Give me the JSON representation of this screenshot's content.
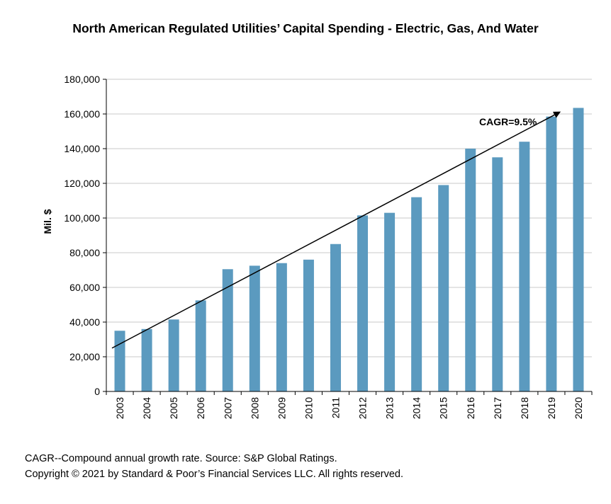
{
  "chart_data": {
    "type": "bar",
    "title": "North American Regulated Utilities’ Capital Spending - Electric, Gas, And Water",
    "ylabel": "Mil. $",
    "xlabel": "",
    "categories": [
      "2003",
      "2004",
      "2005",
      "2006",
      "2007",
      "2008",
      "2009",
      "2010",
      "2011",
      "2012",
      "2013",
      "2014",
      "2015",
      "2016",
      "2017",
      "2018",
      "2019",
      "2020"
    ],
    "values": [
      35000,
      36000,
      41500,
      52500,
      70500,
      72500,
      74000,
      76000,
      85000,
      101500,
      103000,
      112000,
      119000,
      140000,
      135000,
      144000,
      158500,
      163500
    ],
    "yticks": [
      "0",
      "20,000",
      "40,000",
      "60,000",
      "80,000",
      "100,000",
      "120,000",
      "140,000",
      "160,000",
      "180,000"
    ],
    "ylim": [
      0,
      180000
    ],
    "grid": true,
    "bar_color": "#5b9abf",
    "annotation": {
      "label": "CAGR=9.5%",
      "trend_start": {
        "x": "2003",
        "y": 25000
      },
      "trend_end": {
        "x": "2019",
        "y": 161000
      }
    }
  },
  "footnotes": {
    "source": "CAGR--Compound annual growth rate. Source: S&P Global Ratings.",
    "copyright": "Copyright © 2021 by Standard & Poor’s Financial Services LLC. All rights reserved."
  }
}
